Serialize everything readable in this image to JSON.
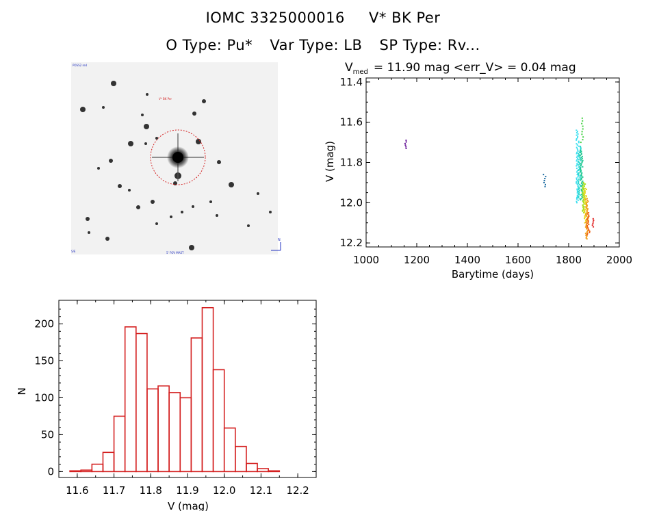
{
  "header": {
    "id_label": "IOMC 3325000016",
    "star_name": "V* BK Per",
    "o_type": "O Type: Pu*",
    "var_type": "Var Type: LB",
    "sp_type": "SP Type: Rv..."
  },
  "sky_image": {
    "top_left_text": "POSS2 red",
    "target_label": "V* BK Per",
    "bottom_left_text": "S/E",
    "bottom_center_text": "5' FOV MAST",
    "bottom_right_text": "N"
  },
  "colors": {
    "hist_bar": "#d42020",
    "circle": "#d42020"
  },
  "chart_data": [
    {
      "type": "scatter",
      "title_main": "V",
      "title_sub": "med",
      "title_rest": "= 11.90 mag <err_V> = 0.04 mag",
      "xlabel": "Barytime (days)",
      "ylabel": "V (mag)",
      "xlim": [
        1000,
        2000
      ],
      "ylim": [
        12.22,
        11.38
      ],
      "xticks": [
        "1000",
        "1200",
        "1400",
        "1600",
        "1800",
        "2000"
      ],
      "yticks": [
        "11.4",
        "11.6",
        "11.8",
        "12.0",
        "12.2"
      ],
      "groups": [
        {
          "x": 1158,
          "ymin": 11.69,
          "ymax": 11.73,
          "color": "#6a1a9a",
          "n": 6
        },
        {
          "x": 1705,
          "ymin": 11.86,
          "ymax": 11.92,
          "color": "#1a6aa0",
          "n": 7
        },
        {
          "x": 1835,
          "ymin": 11.64,
          "ymax": 12.0,
          "color": "#40e0f0",
          "n": 60
        },
        {
          "x": 1843,
          "ymin": 11.72,
          "ymax": 11.98,
          "color": "#30d8d0",
          "n": 60
        },
        {
          "x": 1851,
          "ymin": 11.74,
          "ymax": 11.99,
          "color": "#20c890",
          "n": 50
        },
        {
          "x": 1853,
          "ymin": 11.58,
          "ymax": 11.7,
          "color": "#40d040",
          "n": 10
        },
        {
          "x": 1860,
          "ymin": 11.9,
          "ymax": 12.05,
          "color": "#a8e020",
          "n": 40
        },
        {
          "x": 1866,
          "ymin": 11.93,
          "ymax": 12.1,
          "color": "#e8d820",
          "n": 40
        },
        {
          "x": 1872,
          "ymin": 11.98,
          "ymax": 12.18,
          "color": "#f0a020",
          "n": 45
        },
        {
          "x": 1878,
          "ymin": 12.05,
          "ymax": 12.16,
          "color": "#f06010",
          "n": 20
        },
        {
          "x": 1893,
          "ymin": 12.08,
          "ymax": 12.12,
          "color": "#e02020",
          "n": 6
        }
      ]
    },
    {
      "type": "bar",
      "xlabel": "V (mag)",
      "ylabel": "N",
      "xlim": [
        11.55,
        12.25
      ],
      "ylim": [
        -8,
        232
      ],
      "xticks": [
        "11.6",
        "11.7",
        "11.8",
        "11.9",
        "12.0",
        "12.1",
        "12.2"
      ],
      "yticks": [
        "0",
        "50",
        "100",
        "150",
        "200"
      ],
      "bin_width": 0.03,
      "bin_start": 11.58,
      "values": [
        1,
        2,
        10,
        26,
        75,
        196,
        187,
        112,
        116,
        107,
        100,
        181,
        222,
        138,
        59,
        34,
        11,
        4,
        1
      ]
    }
  ]
}
